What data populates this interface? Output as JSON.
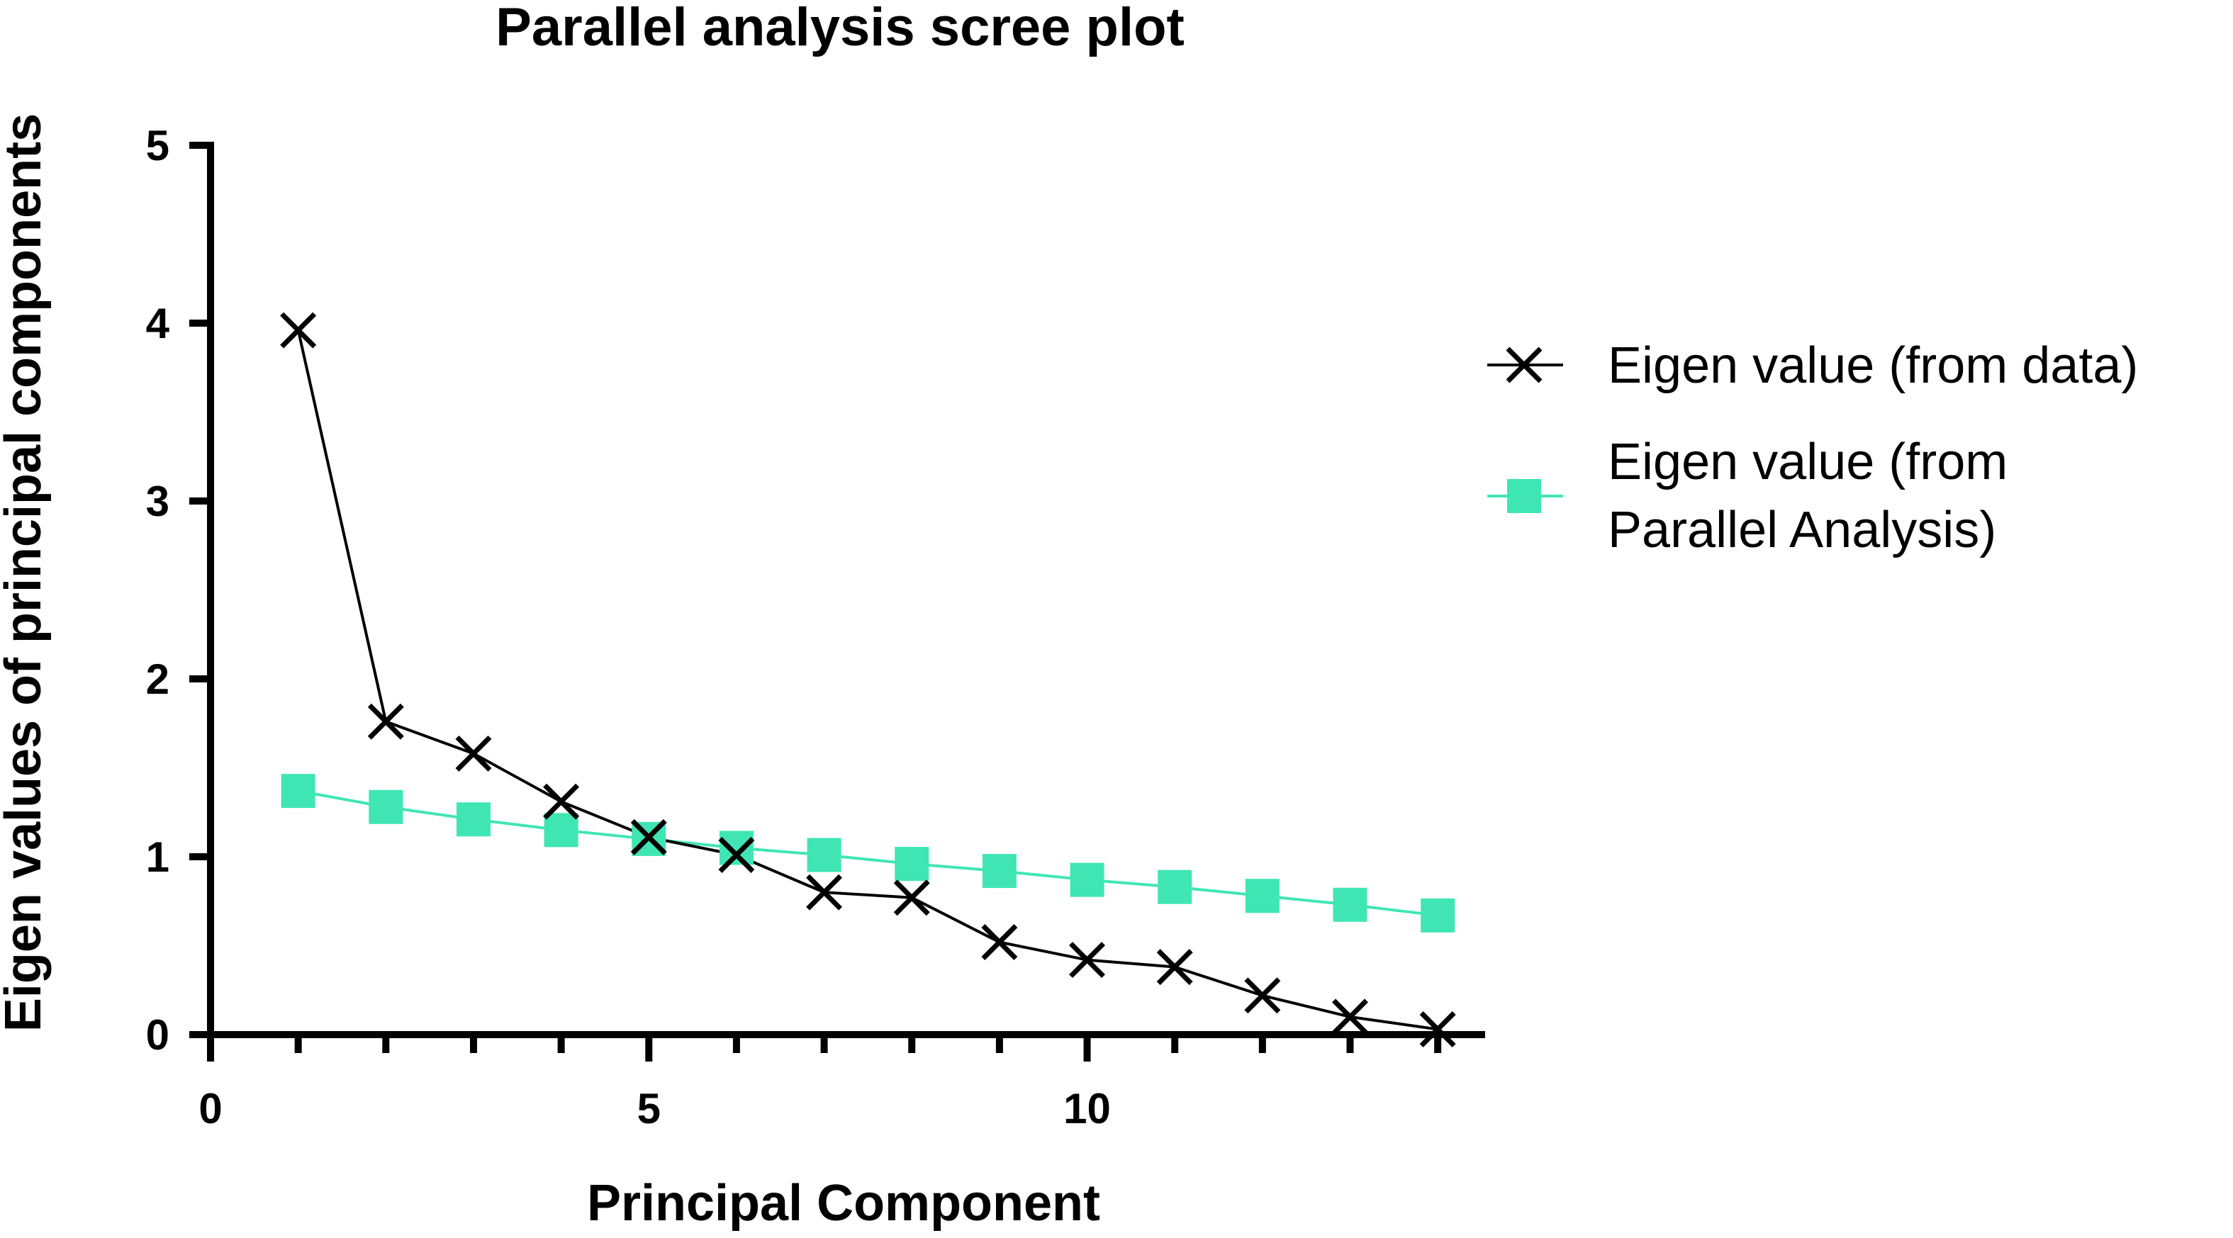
{
  "chart_data": {
    "type": "line",
    "title": "Parallel analysis scree plot",
    "xlabel": "Principal Component",
    "ylabel": "Eigen values of principal components",
    "xlim": [
      0,
      14.5
    ],
    "ylim": [
      0,
      5
    ],
    "x_ticks": [
      0,
      5,
      10
    ],
    "x_minor_ticks": [
      1,
      2,
      3,
      4,
      6,
      7,
      8,
      9,
      11,
      12,
      13,
      14
    ],
    "y_ticks": [
      0,
      1,
      2,
      3,
      4,
      5
    ],
    "x_tick_labels": [
      "0",
      "5",
      "10"
    ],
    "y_tick_labels": [
      "0",
      "1",
      "2",
      "3",
      "4",
      "5"
    ],
    "grid": false,
    "legend_position": "right",
    "x": [
      1,
      2,
      3,
      4,
      5,
      6,
      7,
      8,
      9,
      10,
      11,
      12,
      13,
      14
    ],
    "series": [
      {
        "name": "Eigen value (from data)",
        "marker": "x",
        "color": "#000000",
        "values": [
          3.96,
          1.76,
          1.58,
          1.31,
          1.11,
          1.01,
          0.8,
          0.77,
          0.52,
          0.42,
          0.38,
          0.22,
          0.1,
          0.03
        ]
      },
      {
        "name": "Eigen value (from Parallel Analysis)",
        "legend_lines": [
          "Eigen value (from",
          "Parallel Analysis)"
        ],
        "marker": "square",
        "color": "#3fe6b4",
        "values": [
          1.37,
          1.28,
          1.21,
          1.15,
          1.1,
          1.05,
          1.01,
          0.96,
          0.92,
          0.87,
          0.83,
          0.78,
          0.73,
          0.67
        ]
      }
    ]
  }
}
